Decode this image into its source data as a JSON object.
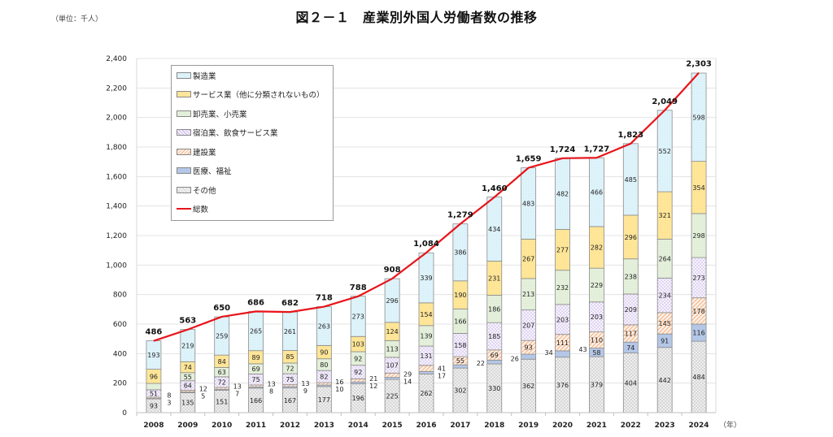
{
  "header": {
    "title": "図２－１　産業別外国人労働者数の推移",
    "unit": "（単位：千人）",
    "year_suffix": "（年）"
  },
  "chart_data": {
    "type": "bar",
    "stacked": true,
    "title": "図２－１　産業別外国人労働者数の推移",
    "xlabel": "（年）",
    "ylabel": "（単位：千人）",
    "ylim": [
      0,
      2400
    ],
    "yticks": [
      0,
      200,
      400,
      600,
      800,
      1000,
      1200,
      1400,
      1600,
      1800,
      2000,
      2200,
      2400
    ],
    "ytick_labels": [
      "0",
      "200",
      "400",
      "600",
      "800",
      "1,000",
      "1,200",
      "1,400",
      "1,600",
      "1,800",
      "2,000",
      "2,200",
      "2,400"
    ],
    "grid": true,
    "legend_position": "top-left",
    "categories": [
      "2008",
      "2009",
      "2010",
      "2011",
      "2012",
      "2013",
      "2014",
      "2015",
      "2016",
      "2017",
      "2018",
      "2019",
      "2020",
      "2021",
      "2022",
      "2023",
      "2024"
    ],
    "series": [
      {
        "name": "その他",
        "key": "other",
        "color": "#eeeeee",
        "pattern": "crosshatch",
        "values": [
          93,
          135,
          151,
          166,
          167,
          177,
          196,
          225,
          262,
          302,
          330,
          362,
          376,
          379,
          404,
          442,
          484
        ]
      },
      {
        "name": "医療、福祉",
        "key": "medical",
        "color": "#b4c7e7",
        "pattern": "solid",
        "values": [
          3,
          5,
          7,
          8,
          9,
          10,
          12,
          14,
          17,
          22,
          26,
          34,
          43,
          58,
          74,
          91,
          116
        ]
      },
      {
        "name": "建設業",
        "key": "construction",
        "color": "#fce4d6",
        "pattern": "diagonal",
        "values": [
          8,
          12,
          13,
          13,
          13,
          16,
          21,
          29,
          41,
          55,
          69,
          93,
          111,
          110,
          117,
          145,
          178
        ]
      },
      {
        "name": "宿泊業、飲食サービス業",
        "key": "hospitality",
        "color": "#f3eefb",
        "pattern": "dots",
        "values": [
          51,
          64,
          72,
          75,
          75,
          82,
          92,
          107,
          131,
          158,
          185,
          207,
          203,
          203,
          209,
          234,
          273
        ]
      },
      {
        "name": "卸売業、小売業",
        "key": "wholesale",
        "color": "#e2efda",
        "pattern": "solid",
        "values": [
          43,
          55,
          63,
          69,
          72,
          80,
          92,
          113,
          139,
          166,
          186,
          213,
          232,
          229,
          238,
          264,
          298
        ]
      },
      {
        "name": "サービス業（他に分類されないもの）",
        "key": "services",
        "color": "#ffe699",
        "pattern": "solid",
        "values": [
          96,
          74,
          84,
          89,
          85,
          90,
          103,
          124,
          154,
          190,
          231,
          267,
          277,
          282,
          296,
          321,
          354
        ]
      },
      {
        "name": "製造業",
        "key": "manufacturing",
        "color": "#ddf3f9",
        "pattern": "solid",
        "values": [
          193,
          219,
          259,
          265,
          261,
          263,
          273,
          296,
          339,
          386,
          434,
          483,
          482,
          466,
          485,
          552,
          598
        ]
      }
    ],
    "line": {
      "name": "総数",
      "color": "#e8141a",
      "values": [
        486,
        563,
        650,
        686,
        682,
        718,
        788,
        908,
        1084,
        1279,
        1460,
        1659,
        1724,
        1727,
        1823,
        2049,
        2303
      ],
      "labels": [
        "486",
        "563",
        "650",
        "686",
        "682",
        "718",
        "788",
        "908",
        "1,084",
        "1,279",
        "1,460",
        "1,659",
        "1,724",
        "1,727",
        "1,823",
        "2,049",
        "2,303"
      ]
    },
    "legend_order": [
      "製造業",
      "サービス業（他に分類されないもの）",
      "卸売業、小売業",
      "宿泊業、飲食サービス業",
      "建設業",
      "医療、福祉",
      "その他",
      "総数"
    ]
  },
  "legend": {
    "items": [
      {
        "label": "製造業",
        "color": "#ddf3f9"
      },
      {
        "label": "サービス業（他に分類されないもの）",
        "color": "#ffe699"
      },
      {
        "label": "卸売業、小売業",
        "color": "#e2efda"
      },
      {
        "label": "宿泊業、飲食サービス業",
        "color": "#f3eefb"
      },
      {
        "label": "建設業",
        "color": "#fce4d6"
      },
      {
        "label": "医療、福祉",
        "color": "#b4c7e7"
      },
      {
        "label": "その他",
        "color": "#eeeeee"
      }
    ],
    "line_label": "総数"
  }
}
